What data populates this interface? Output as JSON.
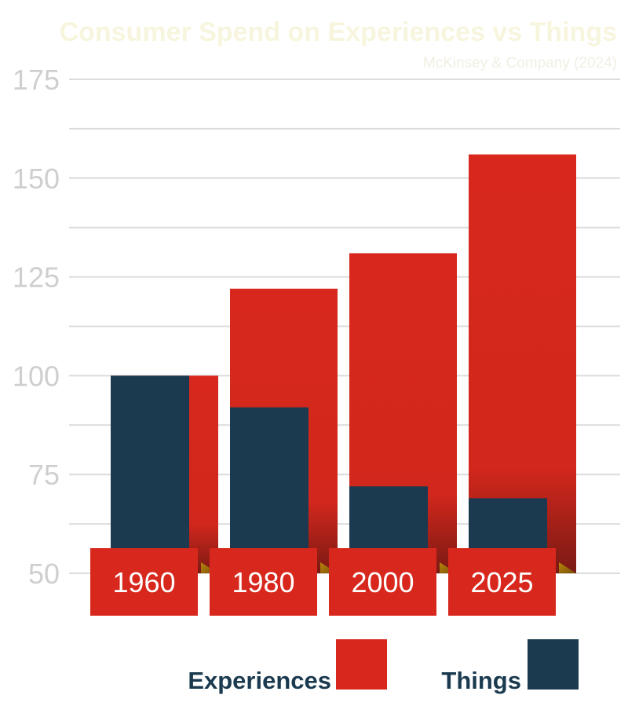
{
  "header": {
    "title": "Consumer Spend on Experiences vs Things",
    "subtitle": "McKinsey & Company (2024)"
  },
  "chart_data": {
    "type": "bar",
    "title": "Consumer Spend on Experiences vs Things",
    "subtitle": "McKinsey & Company (2024)",
    "categories": [
      "1960",
      "1980",
      "2000",
      "2025"
    ],
    "series": [
      {
        "name": "Experiences",
        "values": [
          100,
          122,
          131,
          156
        ],
        "color": "#d8281d"
      },
      {
        "name": "Things",
        "values": [
          100,
          92,
          72,
          69
        ],
        "color": "#1b3a4f"
      }
    ],
    "ylim": [
      50,
      175
    ],
    "yticks": [
      50,
      75,
      100,
      125,
      150,
      175
    ],
    "grid": true,
    "legend": "bottom",
    "colors": {
      "experiences": "#d8281d",
      "things": "#1b3a4f",
      "grid": "#dcdcdc",
      "tick_text": "#cfcfcf",
      "category_box": "#d8281d"
    }
  }
}
